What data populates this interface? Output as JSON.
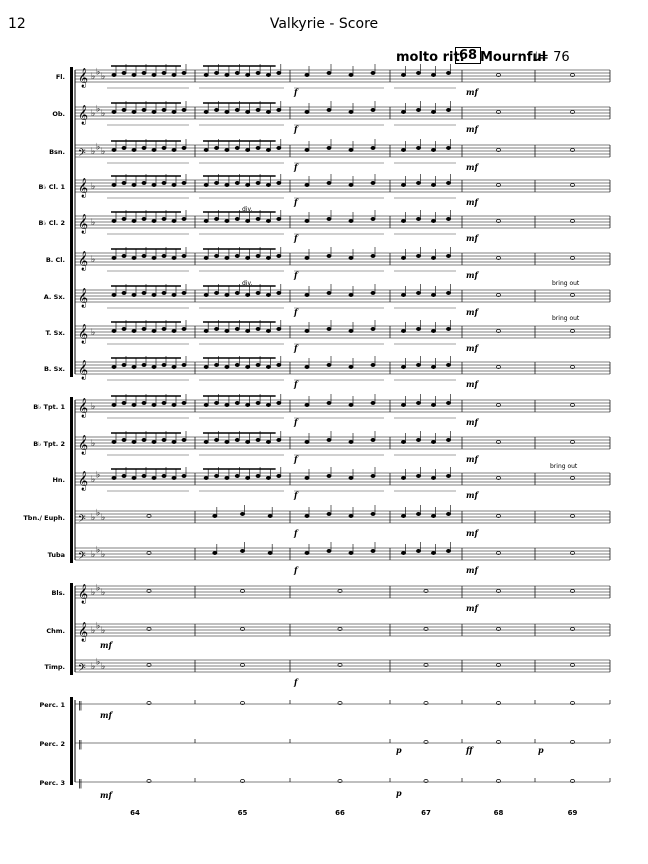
{
  "header": {
    "page_number": "12",
    "title": "Valkyrie - Score"
  },
  "tempo": {
    "rit": "molto rit.",
    "rehearsal": "68",
    "marking": "Mournful",
    "metronome": "♩= 76"
  },
  "instruments": [
    {
      "label": "Fl.",
      "clef": "treble",
      "flats": 3
    },
    {
      "label": "Ob.",
      "clef": "treble",
      "flats": 3
    },
    {
      "label": "Bsn.",
      "clef": "bass",
      "flats": 3
    },
    {
      "label": "B♭ Cl. 1",
      "clef": "treble",
      "flats": 1
    },
    {
      "label": "B♭ Cl. 2",
      "clef": "treble",
      "flats": 1
    },
    {
      "label": "B. Cl.",
      "clef": "treble",
      "flats": 1
    },
    {
      "label": "A. Sx.",
      "clef": "treble",
      "flats": 0
    },
    {
      "label": "T. Sx.",
      "clef": "treble",
      "flats": 1
    },
    {
      "label": "B. Sx.",
      "clef": "treble",
      "flats": 0
    },
    {
      "label": "B♭ Tpt. 1",
      "clef": "treble",
      "flats": 1
    },
    {
      "label": "B♭ Tpt. 2",
      "clef": "treble",
      "flats": 1
    },
    {
      "label": "Hn.",
      "clef": "treble",
      "flats": 2
    },
    {
      "label": "Tbn./ Euph.",
      "clef": "bass",
      "flats": 3
    },
    {
      "label": "Tuba",
      "clef": "bass",
      "flats": 3
    },
    {
      "label": "Bls.",
      "clef": "treble",
      "flats": 3
    },
    {
      "label": "Chm.",
      "clef": "treble",
      "flats": 3
    },
    {
      "label": "Timp.",
      "clef": "bass",
      "flats": 3
    },
    {
      "label": "Perc. 1",
      "clef": "perc",
      "flats": 0
    },
    {
      "label": "Perc. 2",
      "clef": "perc",
      "flats": 0
    },
    {
      "label": "Perc. 3",
      "clef": "perc",
      "flats": 0
    }
  ],
  "measure_numbers": [
    "64",
    "65",
    "66",
    "67",
    "68",
    "69"
  ],
  "annotations": {
    "div": "div.",
    "bring_out": "bring out",
    "dynamics": [
      "f",
      "mf",
      "p",
      "ff"
    ]
  }
}
